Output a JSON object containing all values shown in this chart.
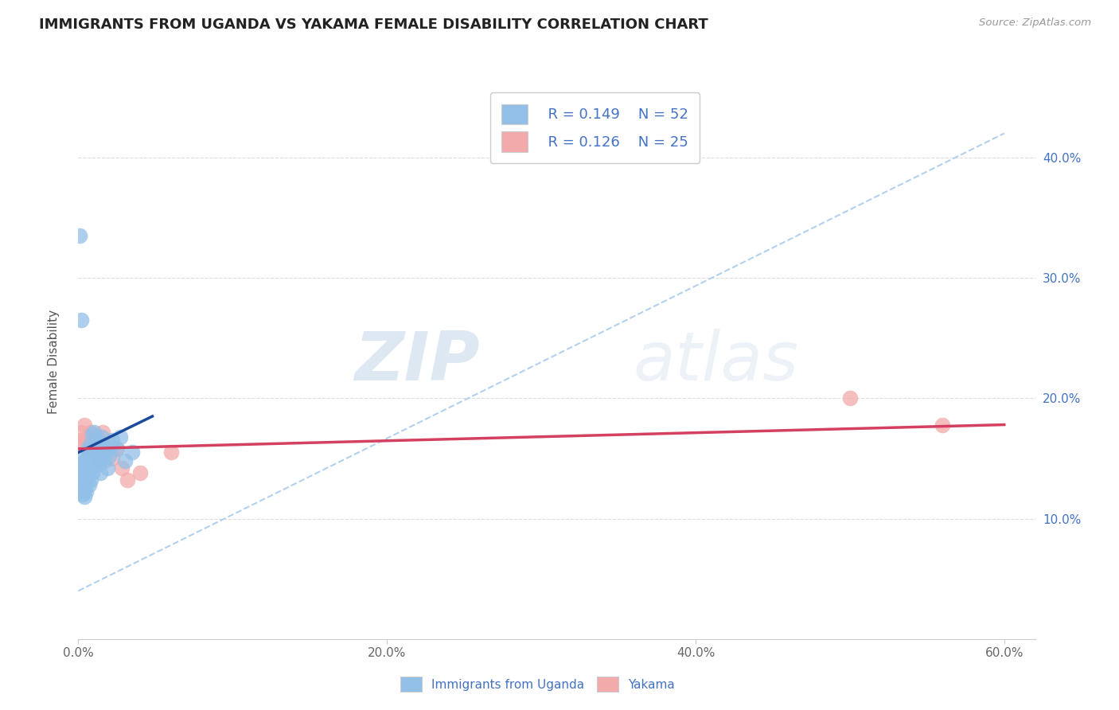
{
  "title": "IMMIGRANTS FROM UGANDA VS YAKAMA FEMALE DISABILITY CORRELATION CHART",
  "source": "Source: ZipAtlas.com",
  "ylabel": "Female Disability",
  "xlim": [
    0.0,
    0.62
  ],
  "ylim": [
    0.0,
    0.46
  ],
  "xtick_vals": [
    0.0,
    0.2,
    0.4,
    0.6
  ],
  "xtick_labels": [
    "0.0%",
    "20.0%",
    "40.0%",
    "60.0%"
  ],
  "ytick_vals": [
    0.1,
    0.2,
    0.3,
    0.4
  ],
  "ytick_labels": [
    "10.0%",
    "20.0%",
    "30.0%",
    "40.0%"
  ],
  "legend_r1": "R = 0.149",
  "legend_n1": "N = 52",
  "legend_r2": "R = 0.126",
  "legend_n2": "N = 25",
  "color_blue": "#92C0E8",
  "color_pink": "#F2AAAA",
  "color_blue_line": "#1A4A9A",
  "color_pink_line": "#D44060",
  "color_dashed": "#AACCEE",
  "watermark_zip": "ZIP",
  "watermark_atlas": "atlas",
  "title_fontsize": 13,
  "blue_line_x0": 0.0,
  "blue_line_x1": 0.048,
  "blue_line_y0": 0.155,
  "blue_line_y1": 0.185,
  "pink_line_x0": 0.0,
  "pink_line_x1": 0.6,
  "pink_line_y0": 0.158,
  "pink_line_y1": 0.178,
  "dash_line_x0": 0.0,
  "dash_line_x1": 0.6,
  "dash_line_y0": 0.04,
  "dash_line_y1": 0.42,
  "blue_x": [
    0.001,
    0.001,
    0.002,
    0.002,
    0.003,
    0.003,
    0.003,
    0.004,
    0.004,
    0.004,
    0.004,
    0.005,
    0.005,
    0.005,
    0.006,
    0.006,
    0.006,
    0.007,
    0.007,
    0.007,
    0.008,
    0.008,
    0.008,
    0.008,
    0.009,
    0.009,
    0.009,
    0.01,
    0.01,
    0.01,
    0.011,
    0.011,
    0.012,
    0.012,
    0.013,
    0.014,
    0.014,
    0.015,
    0.015,
    0.016,
    0.017,
    0.018,
    0.019,
    0.02,
    0.021,
    0.022,
    0.025,
    0.027,
    0.03,
    0.035,
    0.001,
    0.002
  ],
  "blue_y": [
    0.15,
    0.135,
    0.14,
    0.128,
    0.132,
    0.12,
    0.145,
    0.118,
    0.138,
    0.125,
    0.148,
    0.13,
    0.142,
    0.122,
    0.135,
    0.148,
    0.158,
    0.14,
    0.152,
    0.128,
    0.145,
    0.132,
    0.155,
    0.162,
    0.138,
    0.148,
    0.17,
    0.158,
    0.145,
    0.172,
    0.162,
    0.148,
    0.155,
    0.165,
    0.145,
    0.158,
    0.138,
    0.168,
    0.152,
    0.162,
    0.148,
    0.155,
    0.142,
    0.152,
    0.16,
    0.165,
    0.158,
    0.168,
    0.148,
    0.155,
    0.335,
    0.265
  ],
  "pink_x": [
    0.001,
    0.002,
    0.003,
    0.004,
    0.005,
    0.006,
    0.007,
    0.008,
    0.009,
    0.01,
    0.011,
    0.012,
    0.013,
    0.015,
    0.016,
    0.018,
    0.02,
    0.022,
    0.025,
    0.028,
    0.032,
    0.04,
    0.06,
    0.5,
    0.56
  ],
  "pink_y": [
    0.165,
    0.172,
    0.162,
    0.178,
    0.165,
    0.158,
    0.168,
    0.172,
    0.158,
    0.165,
    0.16,
    0.168,
    0.148,
    0.162,
    0.172,
    0.158,
    0.162,
    0.15,
    0.158,
    0.142,
    0.132,
    0.138,
    0.155,
    0.2,
    0.178
  ]
}
